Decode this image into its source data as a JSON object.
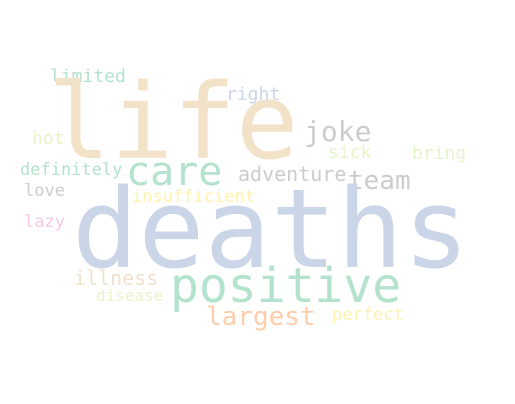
{
  "words": {
    "life": "life",
    "deaths": "deaths",
    "positive": "positive",
    "care": "care",
    "joke": "joke",
    "team": "team",
    "largest": "largest",
    "adventure": "adventure",
    "illness": "illness",
    "limited": "limited",
    "right": "right",
    "hot": "hot",
    "sick": "sick",
    "bring": "bring",
    "definitely": "definitely",
    "love": "love",
    "insufficient": "insufficient",
    "lazy": "lazy",
    "disease": "disease",
    "perfect": "perfect"
  },
  "colors": {
    "life": "#f2e2c8",
    "deaths": "#cbd5e8",
    "positive": "#b3e2cd",
    "care": "#b3e2cd",
    "joke": "#cccccc",
    "team": "#cccccc",
    "largest": "#fdcdac",
    "adventure": "#cccccc",
    "illness": "#f1e2cc",
    "limited": "#b3e2cd",
    "right": "#cbd5e8",
    "hot": "#e6f5c9",
    "sick": "#e6f5c9",
    "bring": "#e6f5c9",
    "definitely": "#b3e2cd",
    "love": "#cccccc",
    "insufficient": "#fff2ae",
    "lazy": "#f4cae4",
    "disease": "#e6f5c9",
    "perfect": "#fff2ae"
  }
}
